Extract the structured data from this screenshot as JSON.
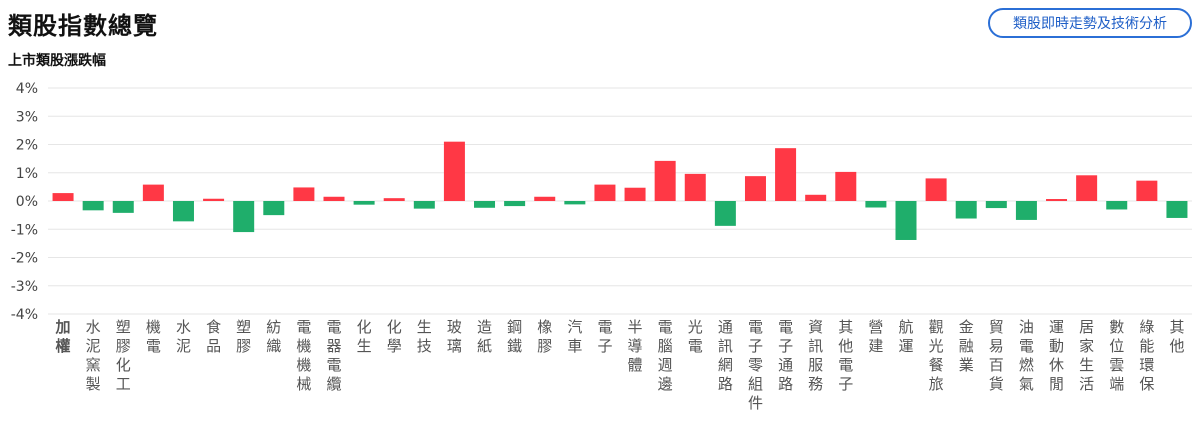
{
  "header": {
    "title": "類股指數總覽",
    "action_label": "類股即時走勢及技術分析"
  },
  "colors": {
    "up": "#ff3845",
    "down": "#1fae6b",
    "grid": "#e6e6e6",
    "accent": "#2b6fd6"
  },
  "chart_data": {
    "type": "bar",
    "title": "上市類股漲跌幅",
    "ylim": [
      -4,
      4
    ],
    "yticks": [
      "4%",
      "3%",
      "2%",
      "1%",
      "0%",
      "-1%",
      "-2%",
      "-3%",
      "-4%"
    ],
    "grid": true,
    "categories": [
      "加權",
      "水泥窯製",
      "塑膠化工",
      "機電",
      "水泥",
      "食品",
      "塑膠",
      "紡織",
      "電機機械",
      "電器電纜",
      "化生",
      "化學",
      "生技",
      "玻璃",
      "造紙",
      "鋼鐵",
      "橡膠",
      "汽車",
      "電子",
      "半導體",
      "電腦週邊",
      "光電",
      "通訊網路",
      "電子零組件",
      "電子通路",
      "資訊服務",
      "其他電子",
      "營建",
      "航運",
      "觀光餐旅",
      "金融業",
      "貿易百貨",
      "油電燃氣",
      "運動休閒",
      "居家生活",
      "數位雲端",
      "綠能環保",
      "其他"
    ],
    "values": [
      0.28,
      -0.33,
      -0.42,
      0.58,
      -0.72,
      0.08,
      -1.1,
      -0.5,
      0.48,
      0.15,
      -0.13,
      0.1,
      -0.27,
      2.1,
      -0.24,
      -0.18,
      0.15,
      -0.12,
      0.58,
      0.47,
      1.42,
      0.96,
      -0.88,
      0.88,
      1.87,
      0.22,
      1.03,
      -0.23,
      -1.38,
      0.8,
      -0.62,
      -0.25,
      -0.67,
      0.07,
      0.91,
      -0.3,
      0.72,
      -0.6
    ]
  }
}
